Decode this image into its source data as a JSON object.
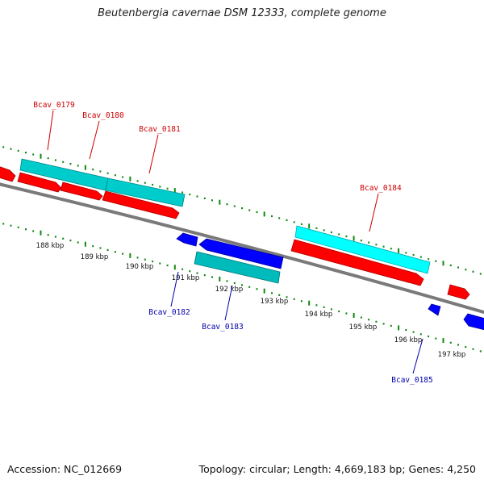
{
  "title": "Beutenbergia cavernae DSM 12333, complete genome",
  "footer": {
    "accession": "Accession: NC_012669",
    "topology": "Topology: circular; Length: 4,669,183 bp; Genes: 4,250"
  },
  "colors": {
    "forward_gene": "#ff0000",
    "reverse_gene": "#0000ff",
    "forward_rna_feature": "#00cccc",
    "reverse_rna_feature": "#00bbbb",
    "forward_label": "#cc0000",
    "reverse_label": "#0000aa",
    "backbone": "#7a7a7a",
    "tick": "#118811"
  },
  "ticks": [
    "188 kbp",
    "189 kbp",
    "190 kbp",
    "191 kbp",
    "192 kbp",
    "193 kbp",
    "194 kbp",
    "195 kbp",
    "196 kbp",
    "197 kbp"
  ],
  "gene_labels": {
    "forward": [
      "Bcav_0179",
      "Bcav_0180",
      "Bcav_0181",
      "Bcav_0184"
    ],
    "reverse": [
      "Bcav_0182",
      "Bcav_0183",
      "Bcav_0185"
    ]
  }
}
